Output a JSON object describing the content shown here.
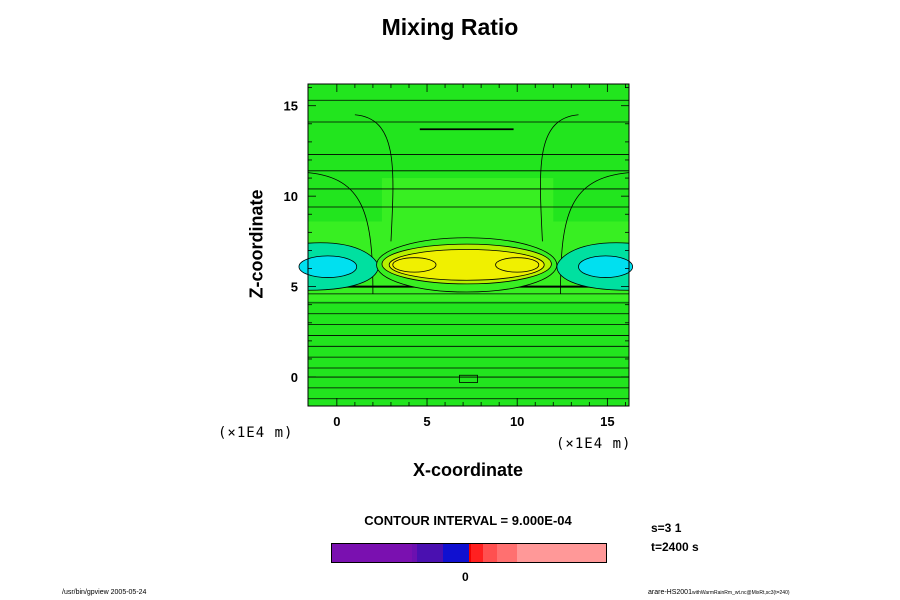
{
  "chart_data": {
    "type": "contour",
    "title": "Mixing Ratio",
    "xlabel": "X-coordinate",
    "ylabel": "Z-coordinate",
    "x_units": "(×1E4 m)",
    "y_units": "(×1E4 m)",
    "xlim": [
      -1.6,
      16.2
    ],
    "ylim": [
      -1.6,
      16.2
    ],
    "x_ticks": [
      "0",
      "5",
      "10",
      "15"
    ],
    "y_ticks": [
      "0",
      "5",
      "10",
      "15"
    ],
    "contour_interval_text": "CONTOUR INTERVAL = 9.000E-04",
    "colorbar": {
      "zero_label": "0",
      "colors": [
        "#7a10b0",
        "#6c10b0",
        "#4a10b0",
        "#1010d0",
        "#f00000",
        "#ff2020",
        "#ff5050",
        "#ff7070",
        "#ff9898"
      ]
    },
    "field_colors": {
      "background": "#22e51e",
      "dark_green": "#22d01e",
      "light_green": "#38ef22",
      "yellow_green": "#b8f000",
      "yellow": "#f0f000",
      "cyan": "#00e0f0",
      "blue_green": "#00e0a0"
    },
    "features": [
      {
        "name": "central positive anomaly",
        "x_center": 7.2,
        "z_center": 6.2,
        "x_half_width": 4.7,
        "z_half_height": 1.1
      },
      {
        "name": "left positive core",
        "x_center": 4.3,
        "z_center": 6.2
      },
      {
        "name": "right positive core",
        "x_center": 10.0,
        "z_center": 6.2
      },
      {
        "name": "left negative anomaly",
        "x_center": -0.5,
        "z_center": 6.1
      },
      {
        "name": "right negative anomaly",
        "x_center": 14.5,
        "z_center": 6.1
      }
    ]
  },
  "annotations": {
    "s": "s=3 1",
    "t": "t=2400 s"
  },
  "footer": {
    "left": "/usr/bin/gpview 2005-05-24",
    "right_main": "arare-HS2001",
    "right_small": "withWarmRainRm_wt.nc@MixRt,sc3(t=240)"
  }
}
